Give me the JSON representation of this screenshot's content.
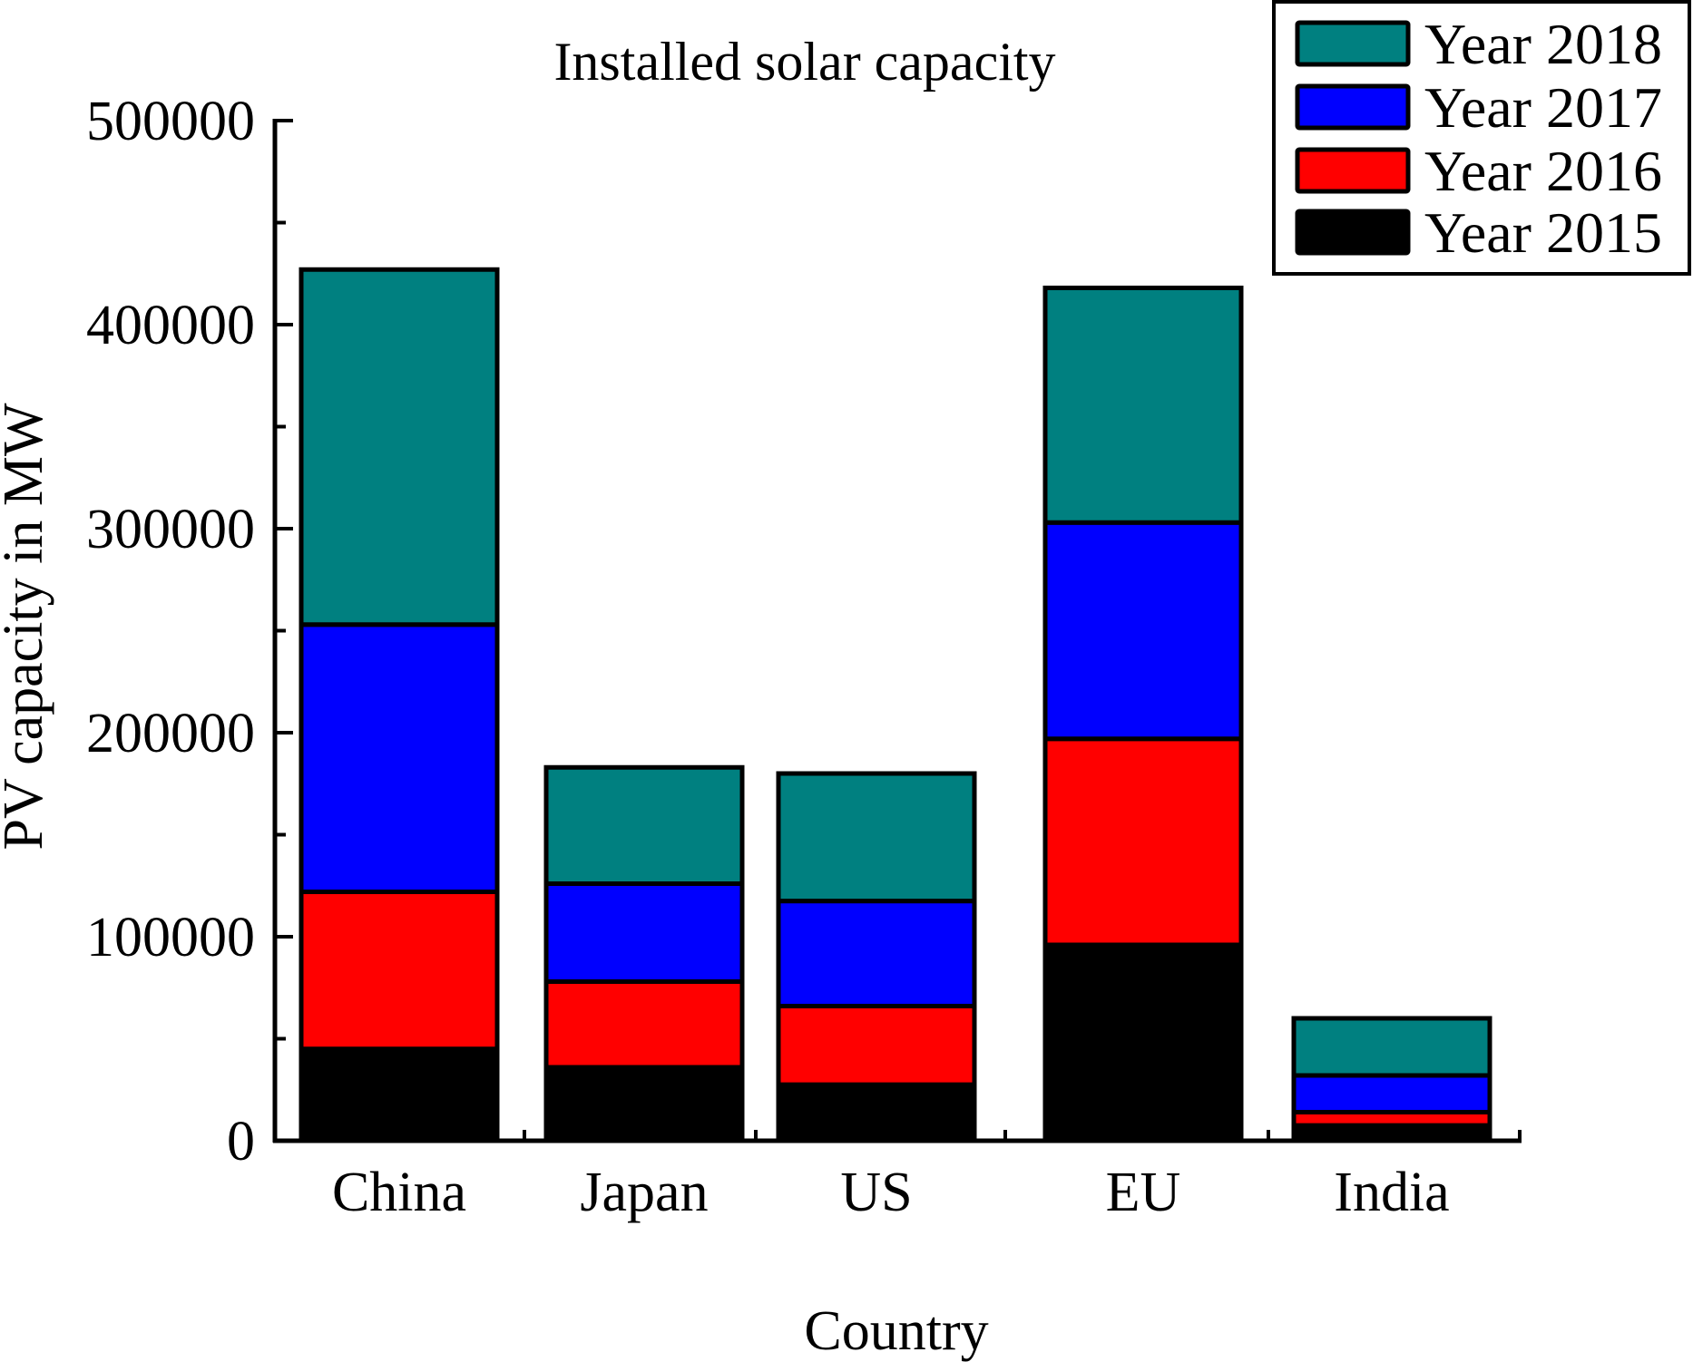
{
  "chart_data": {
    "type": "bar",
    "stacked": true,
    "title": "Installed solar capacity",
    "xlabel": "Country",
    "ylabel": "PV capacity in MW",
    "categories": [
      "China",
      "Japan",
      "US",
      "EU",
      "India"
    ],
    "ylim": [
      0,
      500000
    ],
    "yticks": [
      0,
      100000,
      200000,
      300000,
      400000,
      500000
    ],
    "ytick_labels": [
      "0",
      "100000",
      "200000",
      "300000",
      "400000",
      "500000"
    ],
    "grid": false,
    "legend_position": "top-right",
    "series": [
      {
        "name": "Year 2015",
        "color": "#000000",
        "values": [
          45000,
          36000,
          27500,
          96000,
          7500
        ]
      },
      {
        "name": "Year 2016",
        "color": "#ff0000",
        "values": [
          77000,
          42000,
          38500,
          101000,
          6500
        ]
      },
      {
        "name": "Year 2017",
        "color": "#0000ff",
        "values": [
          131000,
          48000,
          51500,
          106000,
          18000
        ]
      },
      {
        "name": "Year 2018",
        "color": "#008080",
        "values": [
          174000,
          57000,
          62500,
          115000,
          28000
        ]
      }
    ],
    "legend_order": [
      "Year 2018",
      "Year 2017",
      "Year 2016",
      "Year 2015"
    ]
  }
}
